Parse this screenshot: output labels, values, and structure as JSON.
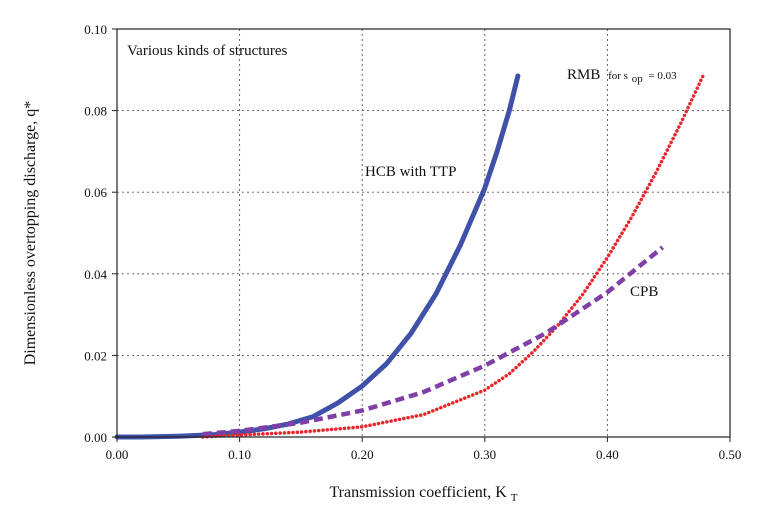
{
  "chart_data": {
    "type": "line",
    "title": "",
    "xlabel": {
      "main": "Transmission coefficient, K",
      "sub": "T"
    },
    "ylabel": "Dimensionless overtopping discharge, q*",
    "xlim": [
      0,
      0.5
    ],
    "ylim": [
      0,
      0.1
    ],
    "xticks": [
      "0.00",
      "0.10",
      "0.20",
      "0.30",
      "0.40",
      "0.50"
    ],
    "yticks": [
      "0.00",
      "0.02",
      "0.04",
      "0.06",
      "0.08",
      "0.10"
    ],
    "grid": true,
    "annotations": {
      "box_text": "Various kinds of structures",
      "hcb": "HCB with TTP",
      "rmb_main": "RMB",
      "rmb_for": "for s",
      "rmb_sub": "op",
      "rmb_value": "= 0.03",
      "cpb": "CPB"
    },
    "colors": {
      "HCB": "#3f51a8",
      "RMB": "#e8262c",
      "CPB": "#7f3fa6"
    },
    "series": [
      {
        "name": "HCB with TTP",
        "style": "solid",
        "x": [
          0.0,
          0.02,
          0.05,
          0.08,
          0.1,
          0.12,
          0.14,
          0.16,
          0.18,
          0.2,
          0.22,
          0.24,
          0.26,
          0.28,
          0.3,
          0.31,
          0.32,
          0.327
        ],
        "y": [
          0.0,
          0.0,
          0.0002,
          0.0006,
          0.0012,
          0.002,
          0.0032,
          0.005,
          0.0083,
          0.0125,
          0.018,
          0.0255,
          0.035,
          0.047,
          0.061,
          0.07,
          0.08,
          0.0885
        ]
      },
      {
        "name": "RMB",
        "style": "dotted",
        "x": [
          0.07,
          0.1,
          0.15,
          0.2,
          0.25,
          0.3,
          0.32,
          0.34,
          0.36,
          0.38,
          0.4,
          0.42,
          0.44,
          0.46,
          0.478
        ],
        "y": [
          0.0,
          0.0005,
          0.0012,
          0.0025,
          0.0055,
          0.0115,
          0.0155,
          0.021,
          0.0275,
          0.035,
          0.044,
          0.054,
          0.065,
          0.077,
          0.0885
        ]
      },
      {
        "name": "CPB",
        "style": "dashed",
        "x": [
          0.07,
          0.1,
          0.15,
          0.2,
          0.25,
          0.3,
          0.35,
          0.4,
          0.445
        ],
        "y": [
          0.0007,
          0.0015,
          0.0035,
          0.0065,
          0.011,
          0.0175,
          0.0255,
          0.0355,
          0.0465
        ]
      }
    ]
  }
}
